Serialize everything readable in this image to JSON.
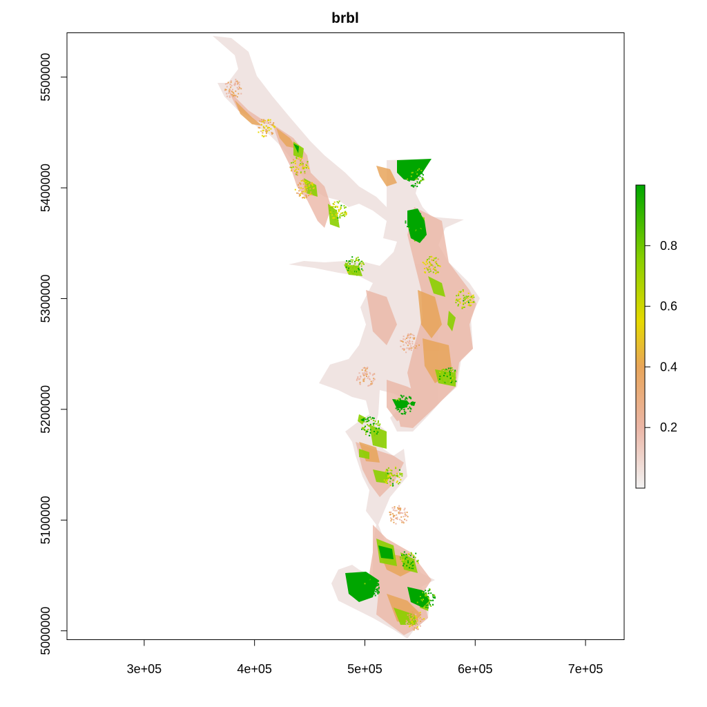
{
  "chart_data": {
    "type": "heatmap",
    "title": "brbl",
    "xlabel": "",
    "ylabel": "",
    "xlim": [
      230000,
      735000
    ],
    "ylim": [
      4992000,
      5540000
    ],
    "x_ticks": [
      300000,
      400000,
      500000,
      600000,
      700000
    ],
    "x_tick_labels": [
      "3e+05",
      "4e+05",
      "5e+05",
      "6e+05",
      "7e+05"
    ],
    "y_ticks": [
      5000000,
      5100000,
      5200000,
      5300000,
      5400000,
      5500000
    ],
    "y_tick_labels": [
      "5000000",
      "5100000",
      "5200000",
      "5300000",
      "5400000",
      "5500000"
    ],
    "grid": false,
    "legend": {
      "type": "colorbar",
      "placement": "right",
      "range": [
        0,
        1
      ],
      "ticks": [
        0.2,
        0.4,
        0.6,
        0.8
      ],
      "tick_labels": [
        "0.2",
        "0.4",
        "0.6",
        "0.8"
      ],
      "colors": [
        "#f2f2f2",
        "#ebb6a6",
        "#e8a55a",
        "#e6d900",
        "#8bd000",
        "#00a600"
      ]
    },
    "regions": [
      {
        "x": 380000,
        "y": 5490000,
        "value": 0.15
      },
      {
        "x": 410000,
        "y": 5455000,
        "value": 0.35
      },
      {
        "x": 440000,
        "y": 5420000,
        "value": 0.5
      },
      {
        "x": 445000,
        "y": 5400000,
        "value": 0.35
      },
      {
        "x": 475000,
        "y": 5380000,
        "value": 0.6
      },
      {
        "x": 490000,
        "y": 5330000,
        "value": 0.7
      },
      {
        "x": 545000,
        "y": 5410000,
        "value": 0.85
      },
      {
        "x": 545000,
        "y": 5370000,
        "value": 0.9
      },
      {
        "x": 560000,
        "y": 5330000,
        "value": 0.5
      },
      {
        "x": 590000,
        "y": 5300000,
        "value": 0.6
      },
      {
        "x": 575000,
        "y": 5230000,
        "value": 0.7
      },
      {
        "x": 540000,
        "y": 5260000,
        "value": 0.12
      },
      {
        "x": 500000,
        "y": 5230000,
        "value": 0.1
      },
      {
        "x": 535000,
        "y": 5205000,
        "value": 0.9
      },
      {
        "x": 505000,
        "y": 5185000,
        "value": 0.75
      },
      {
        "x": 525000,
        "y": 5140000,
        "value": 0.6
      },
      {
        "x": 530000,
        "y": 5105000,
        "value": 0.2
      },
      {
        "x": 540000,
        "y": 5065000,
        "value": 0.7
      },
      {
        "x": 505000,
        "y": 5040000,
        "value": 0.9
      },
      {
        "x": 555000,
        "y": 5030000,
        "value": 0.85
      },
      {
        "x": 545000,
        "y": 5010000,
        "value": 0.3
      }
    ]
  }
}
